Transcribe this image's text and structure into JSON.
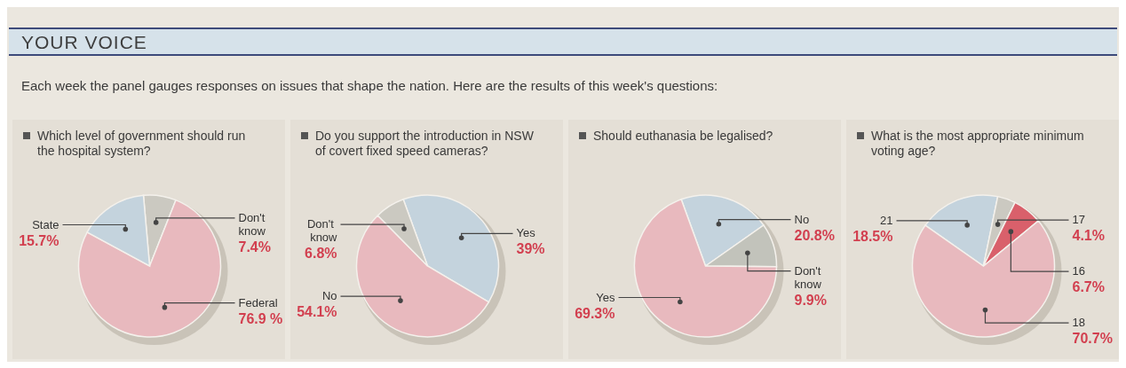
{
  "chart_data": [
    {
      "type": "pie",
      "title": "Which level of government should run the hospital system?",
      "categories": [
        "Don't know",
        "Federal",
        "State"
      ],
      "values": [
        7.4,
        76.9,
        15.7
      ],
      "colors": [
        "#cbc9c1",
        "#e8b9be",
        "#c4d3dd"
      ],
      "value_labels": [
        "7.4%",
        "76.9 %",
        "15.7%"
      ],
      "annotations": [
        "YOUR VOICE",
        "Each week the panel gauges responses on issues that shape the nation. Here are the results of this week's questions:"
      ]
    },
    {
      "type": "pie",
      "title": "Do you support the introduction in NSW of covert fixed speed cameras?",
      "categories": [
        "Yes",
        "No",
        "Don't know"
      ],
      "values": [
        39,
        54.1,
        6.8
      ],
      "colors": [
        "#c4d3dd",
        "#e8b9be",
        "#cbc9c1"
      ],
      "value_labels": [
        "39%",
        "54.1%",
        "6.8%"
      ]
    },
    {
      "type": "pie",
      "title": "Should euthanasia be legalised?",
      "categories": [
        "No",
        "Don't know",
        "Yes"
      ],
      "values": [
        20.8,
        9.9,
        69.3
      ],
      "colors": [
        "#c4d3dd",
        "#c2c3bb",
        "#e8b9be"
      ],
      "value_labels": [
        "20.8%",
        "9.9%",
        "69.3%"
      ]
    },
    {
      "type": "pie",
      "title": "What is the most appropriate minimum voting age?",
      "categories": [
        "21",
        "17",
        "16",
        "18"
      ],
      "values": [
        18.5,
        4.1,
        6.7,
        70.7
      ],
      "colors": [
        "#c4d3dd",
        "#cbc9c1",
        "#d9606b",
        "#e8b9be"
      ],
      "value_labels": [
        "18.5%",
        "4.1%",
        "6.7%",
        "70.7%"
      ]
    }
  ]
}
